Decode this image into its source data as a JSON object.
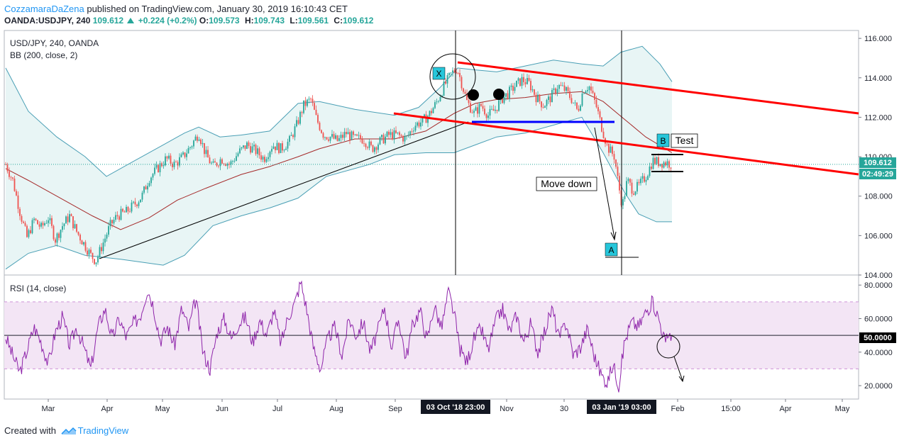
{
  "header": {
    "author": "CozzamaraDaZena",
    "published": "published on TradingView.com, January 30, 2019 16:10:43 CET",
    "symbol": "OANDA:USDJPY, 240",
    "last": "109.612",
    "change": "+0.224 (+0.2%)",
    "o_label": "O:",
    "o": "109.573",
    "h_label": "H:",
    "h": "109.743",
    "l_label": "L:",
    "l": "109.561",
    "c_label": "C:",
    "c": "109.612"
  },
  "pane_main": {
    "title": "USD/JPY, 240, OANDA",
    "indicator": "BB (200, close, 2)"
  },
  "pane_rsi": {
    "title": "RSI (14, close)"
  },
  "price_tag": "109.612",
  "time_tag": "02:49:29",
  "rsi_tag": "50.0000",
  "footer": {
    "prefix": "Created with",
    "brand": "TradingView"
  },
  "colors": {
    "candle_up": "#26a69a",
    "candle_down": "#ef5350",
    "bb_band": "#4a9fb5",
    "bb_basis": "#a52a2a",
    "rsi_line": "#8e24aa",
    "rsi_fill": "#f3e5f5",
    "channel": "#ff0000",
    "support": "#0000ff",
    "price_line": "#26a69a"
  },
  "chart_data": {
    "type": "candlestick",
    "y_axis": {
      "min": 104,
      "max": 116.4,
      "ticks": [
        "104.000",
        "106.000",
        "108.000",
        "110.000",
        "112.000",
        "114.000",
        "116.000"
      ]
    },
    "rsi_axis": {
      "min": 12,
      "max": 86,
      "ticks": [
        "20.0000",
        "40.0000",
        "60.0000",
        "80.0000"
      ],
      "band": [
        30,
        70
      ],
      "midline": 50
    },
    "x_ticks": [
      {
        "label": "Mar",
        "t": 68
      },
      {
        "label": "Apr",
        "t": 151
      },
      {
        "label": "May",
        "t": 229
      },
      {
        "label": "Jun",
        "t": 313
      },
      {
        "label": "Jul",
        "t": 391
      },
      {
        "label": "Aug",
        "t": 474
      },
      {
        "label": "Sep",
        "t": 557
      },
      {
        "label": "Nov",
        "t": 714
      },
      {
        "label": "30",
        "t": 795
      },
      {
        "label": "Feb",
        "t": 955
      },
      {
        "label": "15:00",
        "t": 1030
      },
      {
        "label": "Apr",
        "t": 1107
      },
      {
        "label": "May",
        "t": 1187
      }
    ],
    "x_markers": [
      {
        "label": "03 Oct '18  23:00",
        "t": 642
      },
      {
        "label": "03 Jan '19  03:00",
        "t": 876
      }
    ],
    "price_path": [
      [
        8,
        109.6
      ],
      [
        18,
        108.8
      ],
      [
        28,
        107.2
      ],
      [
        38,
        105.9
      ],
      [
        48,
        106.8
      ],
      [
        58,
        106.4
      ],
      [
        68,
        106.9
      ],
      [
        78,
        105.8
      ],
      [
        88,
        106.5
      ],
      [
        98,
        107.0
      ],
      [
        108,
        106.2
      ],
      [
        118,
        105.6
      ],
      [
        128,
        105.0
      ],
      [
        135,
        104.7
      ],
      [
        145,
        105.6
      ],
      [
        155,
        106.5
      ],
      [
        165,
        107.0
      ],
      [
        178,
        107.2
      ],
      [
        190,
        107.6
      ],
      [
        200,
        108.0
      ],
      [
        210,
        108.9
      ],
      [
        222,
        109.4
      ],
      [
        234,
        109.9
      ],
      [
        246,
        109.6
      ],
      [
        258,
        110.0
      ],
      [
        270,
        110.6
      ],
      [
        280,
        111.2
      ],
      [
        290,
        110.1
      ],
      [
        300,
        109.5
      ],
      [
        312,
        109.9
      ],
      [
        324,
        109.6
      ],
      [
        336,
        110.2
      ],
      [
        348,
        110.6
      ],
      [
        360,
        110.3
      ],
      [
        372,
        109.9
      ],
      [
        384,
        110.6
      ],
      [
        396,
        110.4
      ],
      [
        408,
        110.8
      ],
      [
        418,
        111.6
      ],
      [
        428,
        112.6
      ],
      [
        438,
        112.9
      ],
      [
        446,
        111.9
      ],
      [
        456,
        111.1
      ],
      [
        466,
        111.0
      ],
      [
        476,
        110.8
      ],
      [
        488,
        111.2
      ],
      [
        500,
        110.9
      ],
      [
        512,
        110.9
      ],
      [
        524,
        110.4
      ],
      [
        536,
        110.8
      ],
      [
        548,
        111.1
      ],
      [
        560,
        111.1
      ],
      [
        572,
        110.9
      ],
      [
        584,
        111.6
      ],
      [
        596,
        111.8
      ],
      [
        606,
        112.2
      ],
      [
        616,
        112.8
      ],
      [
        626,
        113.6
      ],
      [
        636,
        114.2
      ],
      [
        644,
        114.5
      ],
      [
        650,
        113.8
      ],
      [
        658,
        112.8
      ],
      [
        668,
        112.2
      ],
      [
        678,
        112.6
      ],
      [
        688,
        112.1
      ],
      [
        698,
        112.4
      ],
      [
        706,
        112.9
      ],
      [
        716,
        113.2
      ],
      [
        726,
        113.6
      ],
      [
        736,
        113.9
      ],
      [
        746,
        113.7
      ],
      [
        756,
        113.0
      ],
      [
        766,
        112.6
      ],
      [
        776,
        113.0
      ],
      [
        786,
        113.6
      ],
      [
        796,
        113.4
      ],
      [
        806,
        112.9
      ],
      [
        814,
        112.3
      ],
      [
        822,
        113.4
      ],
      [
        830,
        113.6
      ],
      [
        840,
        112.6
      ],
      [
        848,
        111.5
      ],
      [
        856,
        110.5
      ],
      [
        866,
        110.0
      ],
      [
        872,
        108.5
      ],
      [
        877,
        107.5
      ],
      [
        884,
        108.8
      ],
      [
        892,
        108.3
      ],
      [
        900,
        108.5
      ],
      [
        910,
        109.0
      ],
      [
        920,
        109.8
      ],
      [
        930,
        109.7
      ],
      [
        940,
        109.7
      ],
      [
        947,
        109.61
      ]
    ],
    "bb_upper": [
      [
        8,
        114.5
      ],
      [
        40,
        112.3
      ],
      [
        80,
        111.0
      ],
      [
        120,
        110.0
      ],
      [
        150,
        109.0
      ],
      [
        190,
        109.8
      ],
      [
        230,
        110.6
      ],
      [
        260,
        111.2
      ],
      [
        280,
        111.5
      ],
      [
        310,
        111.0
      ],
      [
        340,
        111.1
      ],
      [
        380,
        111.3
      ],
      [
        420,
        112.7
      ],
      [
        450,
        112.8
      ],
      [
        500,
        112.4
      ],
      [
        556,
        112.1
      ],
      [
        590,
        112.5
      ],
      [
        620,
        113.5
      ],
      [
        645,
        114.5
      ],
      [
        670,
        114.4
      ],
      [
        700,
        114.3
      ],
      [
        740,
        114.6
      ],
      [
        780,
        114.9
      ],
      [
        820,
        114.7
      ],
      [
        850,
        114.6
      ],
      [
        875,
        115.3
      ],
      [
        905,
        115.6
      ],
      [
        930,
        114.7
      ],
      [
        947,
        113.8
      ]
    ],
    "bb_basis": [
      [
        8,
        109.4
      ],
      [
        40,
        108.8
      ],
      [
        80,
        108.0
      ],
      [
        130,
        107.0
      ],
      [
        170,
        106.3
      ],
      [
        210,
        106.9
      ],
      [
        250,
        107.8
      ],
      [
        290,
        108.4
      ],
      [
        340,
        109.1
      ],
      [
        380,
        109.5
      ],
      [
        420,
        110.0
      ],
      [
        450,
        110.4
      ],
      [
        500,
        110.9
      ],
      [
        556,
        110.9
      ],
      [
        600,
        111.3
      ],
      [
        640,
        112.2
      ],
      [
        670,
        112.7
      ],
      [
        700,
        112.9
      ],
      [
        740,
        113.0
      ],
      [
        780,
        113.2
      ],
      [
        820,
        113.3
      ],
      [
        850,
        112.8
      ],
      [
        880,
        111.9
      ],
      [
        910,
        111.0
      ],
      [
        947,
        110.2
      ]
    ],
    "bb_lower": [
      [
        8,
        104.3
      ],
      [
        40,
        105.1
      ],
      [
        80,
        105.5
      ],
      [
        120,
        105.0
      ],
      [
        170,
        104.8
      ],
      [
        230,
        104.5
      ],
      [
        260,
        105.0
      ],
      [
        300,
        106.5
      ],
      [
        340,
        107.0
      ],
      [
        380,
        107.4
      ],
      [
        420,
        107.9
      ],
      [
        460,
        109.0
      ],
      [
        520,
        109.6
      ],
      [
        556,
        110.1
      ],
      [
        600,
        110.2
      ],
      [
        640,
        110.2
      ],
      [
        670,
        110.6
      ],
      [
        700,
        111.0
      ],
      [
        740,
        111.2
      ],
      [
        780,
        111.6
      ],
      [
        820,
        112.0
      ],
      [
        850,
        110.2
      ],
      [
        880,
        108.2
      ],
      [
        900,
        107.1
      ],
      [
        925,
        106.7
      ],
      [
        947,
        106.7
      ]
    ],
    "rsi_path": [
      [
        8,
        49
      ],
      [
        18,
        38
      ],
      [
        28,
        28
      ],
      [
        38,
        41
      ],
      [
        48,
        55
      ],
      [
        58,
        46
      ],
      [
        68,
        33
      ],
      [
        78,
        52
      ],
      [
        88,
        61
      ],
      [
        98,
        44
      ],
      [
        108,
        55
      ],
      [
        118,
        43
      ],
      [
        128,
        30
      ],
      [
        138,
        55
      ],
      [
        148,
        66
      ],
      [
        158,
        48
      ],
      [
        168,
        60
      ],
      [
        178,
        49
      ],
      [
        188,
        57
      ],
      [
        198,
        62
      ],
      [
        208,
        78
      ],
      [
        216,
        68
      ],
      [
        226,
        47
      ],
      [
        236,
        55
      ],
      [
        246,
        44
      ],
      [
        256,
        66
      ],
      [
        266,
        54
      ],
      [
        276,
        72
      ],
      [
        286,
        40
      ],
      [
        296,
        30
      ],
      [
        306,
        52
      ],
      [
        316,
        60
      ],
      [
        326,
        48
      ],
      [
        336,
        57
      ],
      [
        346,
        61
      ],
      [
        356,
        46
      ],
      [
        366,
        59
      ],
      [
        376,
        50
      ],
      [
        386,
        65
      ],
      [
        396,
        45
      ],
      [
        406,
        61
      ],
      [
        416,
        70
      ],
      [
        424,
        82
      ],
      [
        432,
        66
      ],
      [
        442,
        42
      ],
      [
        452,
        30
      ],
      [
        462,
        48
      ],
      [
        472,
        55
      ],
      [
        482,
        38
      ],
      [
        492,
        60
      ],
      [
        502,
        50
      ],
      [
        512,
        58
      ],
      [
        522,
        40
      ],
      [
        532,
        52
      ],
      [
        542,
        67
      ],
      [
        552,
        43
      ],
      [
        562,
        60
      ],
      [
        572,
        36
      ],
      [
        582,
        57
      ],
      [
        592,
        65
      ],
      [
        602,
        47
      ],
      [
        612,
        68
      ],
      [
        622,
        54
      ],
      [
        632,
        76
      ],
      [
        640,
        63
      ],
      [
        648,
        42
      ],
      [
        658,
        34
      ],
      [
        668,
        48
      ],
      [
        678,
        54
      ],
      [
        688,
        41
      ],
      [
        698,
        58
      ],
      [
        708,
        66
      ],
      [
        718,
        52
      ],
      [
        728,
        62
      ],
      [
        738,
        46
      ],
      [
        748,
        57
      ],
      [
        758,
        40
      ],
      [
        768,
        53
      ],
      [
        778,
        66
      ],
      [
        788,
        48
      ],
      [
        798,
        58
      ],
      [
        808,
        38
      ],
      [
        818,
        43
      ],
      [
        828,
        54
      ],
      [
        838,
        37
      ],
      [
        848,
        26
      ],
      [
        856,
        22
      ],
      [
        864,
        33
      ],
      [
        872,
        20
      ],
      [
        880,
        46
      ],
      [
        890,
        58
      ],
      [
        900,
        55
      ],
      [
        910,
        64
      ],
      [
        920,
        70
      ],
      [
        930,
        58
      ],
      [
        938,
        45
      ],
      [
        943,
        52
      ],
      [
        947,
        49
      ]
    ],
    "annotations": {
      "labels": [
        "X",
        "B",
        "A"
      ],
      "texts": [
        "Test",
        "Move down"
      ]
    }
  }
}
